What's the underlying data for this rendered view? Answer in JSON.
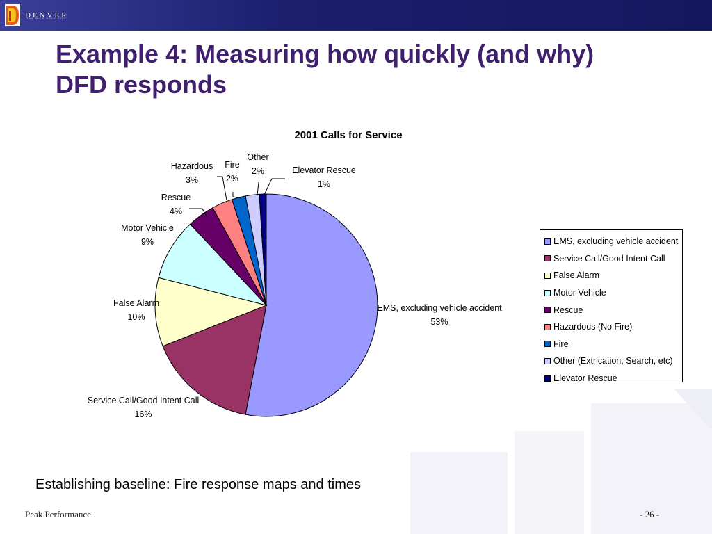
{
  "header": {
    "logo_text": "DENVER",
    "logo_subtext": "THE MILE HIGH CITY"
  },
  "slide": {
    "title_line1": "Example 4: Measuring how quickly (and why)",
    "title_line2": "DFD responds",
    "body_text": "Establishing baseline:  Fire response maps and times",
    "footer_left": "Peak Performance",
    "footer_right": "- 26 -"
  },
  "colors": {
    "title": "#3f1f6e",
    "topbar": "#1b1f6e"
  },
  "chart_data": {
    "type": "pie",
    "title": "2001 Calls for Service",
    "start_angle_deg": 0,
    "direction": "clockwise",
    "legend_position": "right",
    "slices": [
      {
        "label": "EMS, excluding vehicle accident",
        "legend": "EMS, excluding vehicle accident",
        "value": 53,
        "pct_label": "53%",
        "color": "#9999ff"
      },
      {
        "label": "Service Call/Good Intent Call",
        "legend": "Service Call/Good Intent Call",
        "value": 16,
        "pct_label": "16%",
        "color": "#993366"
      },
      {
        "label": "False Alarm",
        "legend": "False Alarm",
        "value": 10,
        "pct_label": "10%",
        "color": "#ffffcc"
      },
      {
        "label": "Motor Vehicle",
        "legend": "Motor Vehicle",
        "value": 9,
        "pct_label": "9%",
        "color": "#ccffff"
      },
      {
        "label": "Rescue",
        "legend": "Rescue",
        "value": 4,
        "pct_label": "4%",
        "color": "#660066"
      },
      {
        "label": "Hazardous",
        "legend": "Hazardous (No Fire)",
        "value": 3,
        "pct_label": "3%",
        "color": "#ff8080"
      },
      {
        "label": "Fire",
        "legend": "Fire",
        "value": 2,
        "pct_label": "2%",
        "color": "#0066cc"
      },
      {
        "label": "Other",
        "legend": "Other (Extrication, Search, etc)",
        "value": 2,
        "pct_label": "2%",
        "color": "#ccccff"
      },
      {
        "label": "Elevator Rescue",
        "legend": "Elevator Rescue",
        "value": 1,
        "pct_label": "1%",
        "color": "#000080"
      }
    ]
  }
}
